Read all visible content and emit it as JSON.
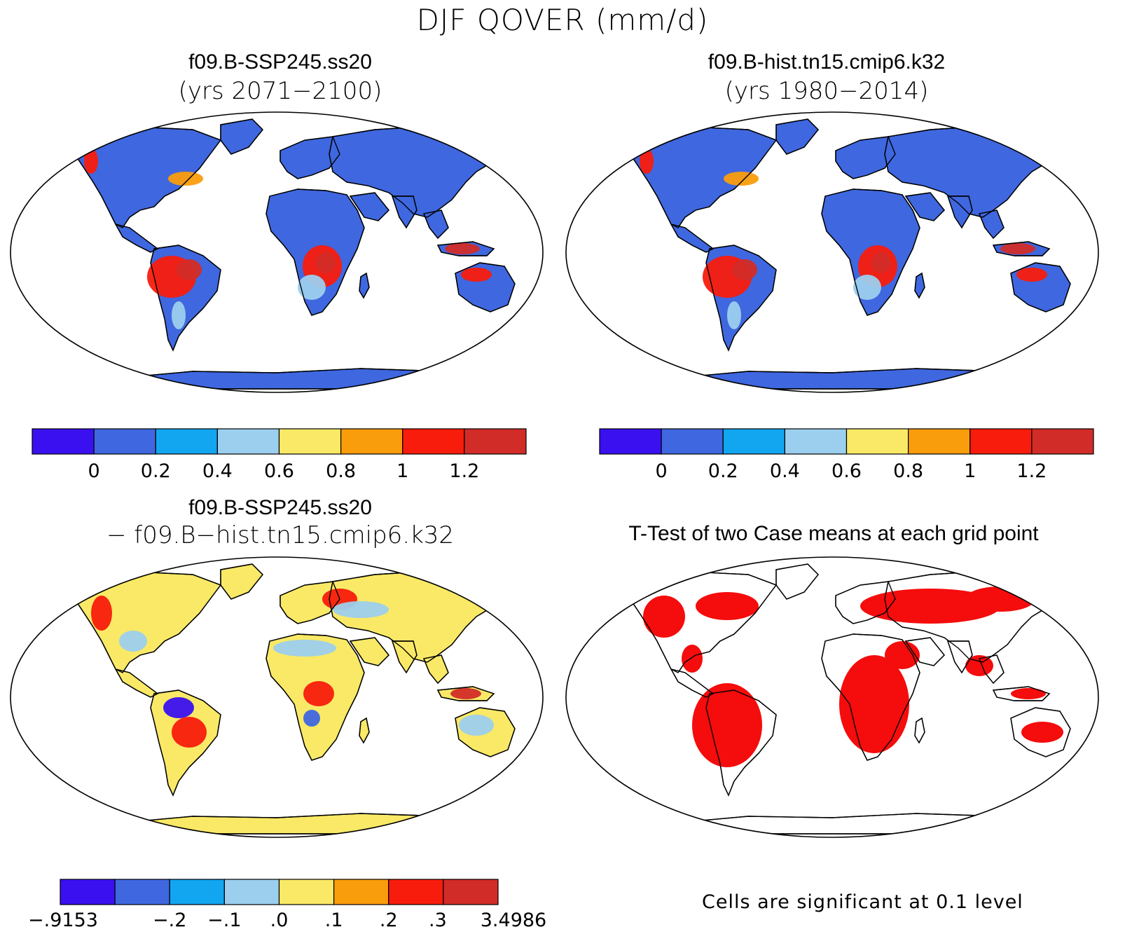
{
  "figure": {
    "title": "DJF QOVER (mm/d)"
  },
  "colors": {
    "c0": "#3a10f0",
    "c1": "#3f67df",
    "c2": "#12a6f0",
    "c3": "#9ccfee",
    "c4": "#f9e967",
    "c5": "#fa9d0c",
    "c6": "#f81c0c",
    "c7": "#d22c28",
    "ocean": "#ffffff",
    "signif": "#f50c0c"
  },
  "panels": [
    {
      "id": "top-left",
      "title": "f09.B-SSP245.ss20",
      "subtitle": "(yrs 2071−2100)",
      "base_color": "c1",
      "colorbar_labels": [
        "0",
        "0.2",
        "0.4",
        "0.6",
        "0.8",
        "1",
        "1.2"
      ]
    },
    {
      "id": "top-right",
      "title": "f09.B-hist.tn15.cmip6.k32",
      "subtitle": "(yrs 1980−2014)",
      "base_color": "c1",
      "colorbar_labels": [
        "0",
        "0.2",
        "0.4",
        "0.6",
        "0.8",
        "1",
        "1.2"
      ]
    },
    {
      "id": "bottom-left",
      "title": "f09.B-SSP245.ss20",
      "subtitle": "− f09.B−hist.tn15.cmip6.k32",
      "base_color": "c4",
      "colorbar_labels": [
        "−.9153",
        "−.2",
        "−.1",
        ".0",
        ".1",
        ".2",
        ".3",
        "3.4986"
      ]
    },
    {
      "id": "bottom-right",
      "title": "T-Test of two Case means at each grid point",
      "note": "Cells are significant at 0.1 level"
    }
  ]
}
